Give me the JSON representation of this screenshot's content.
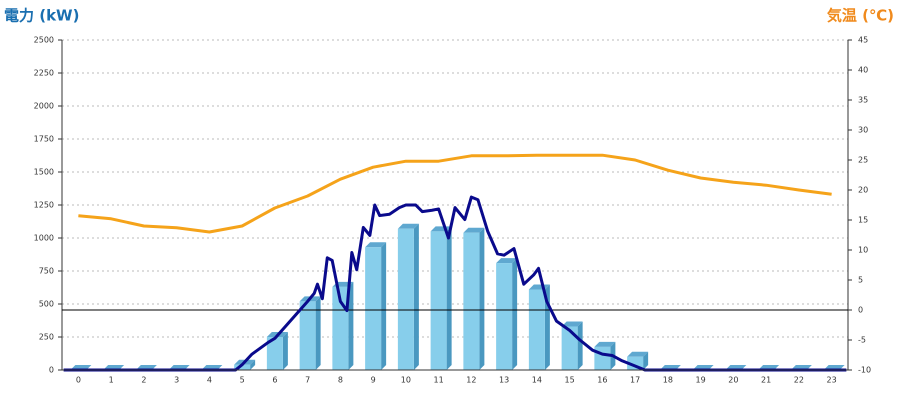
{
  "chart_data": {
    "type": "bar",
    "title": "電力 (kW)",
    "y2title": "気温 (℃)",
    "categories": [
      "0",
      "1",
      "2",
      "3",
      "4",
      "5",
      "6",
      "7",
      "8",
      "9",
      "10",
      "11",
      "12",
      "13",
      "14",
      "15",
      "16",
      "17",
      "18",
      "19",
      "20",
      "21",
      "22",
      "23"
    ],
    "ylim": [
      0,
      2500
    ],
    "yticks": [
      0,
      250,
      500,
      750,
      1000,
      1250,
      1500,
      1750,
      2000,
      2250,
      2500
    ],
    "y2lim": [
      -10,
      45
    ],
    "y2ticks": [
      -10,
      -5,
      0,
      5,
      10,
      15,
      20,
      25,
      30,
      35,
      40,
      45
    ],
    "grid": true,
    "series": [
      {
        "type": "bar",
        "color": "#87ceeb",
        "values": [
          0,
          0,
          0,
          0,
          0,
          40,
          250,
          520,
          630,
          930,
          1070,
          1050,
          1040,
          810,
          610,
          330,
          175,
          100,
          0,
          0,
          0,
          0,
          0,
          0
        ]
      },
      {
        "type": "line",
        "axis": "y2",
        "color": "#f5a31a",
        "values": [
          15.7,
          15.2,
          14,
          13.7,
          13,
          14,
          17,
          19,
          21.8,
          23.8,
          24.8,
          24.8,
          25.7,
          25.7,
          25.8,
          25.8,
          25.8,
          25,
          23.3,
          22,
          21.3,
          20.8,
          20,
          19.3
        ]
      },
      {
        "type": "line",
        "color": "#0a0a8c",
        "x": [
          -0.45,
          4.8,
          5,
          5.3,
          5.8,
          6,
          6.5,
          7,
          7.2,
          7.3,
          7.45,
          7.6,
          7.75,
          8,
          8.2,
          8.35,
          8.5,
          8.7,
          8.9,
          9.05,
          9.2,
          9.5,
          9.8,
          10,
          10.3,
          10.5,
          10.8,
          11,
          11.3,
          11.5,
          11.8,
          12,
          12.2,
          12.5,
          12.8,
          13,
          13.3,
          13.6,
          13.9,
          14.05,
          14.3,
          14.6,
          15,
          15.3,
          15.7,
          16,
          16.3,
          16.6,
          17,
          17.3,
          23.45
        ],
        "values": [
          0,
          0,
          40,
          120,
          210,
          240,
          380,
          520,
          580,
          650,
          540,
          850,
          830,
          520,
          450,
          890,
          760,
          1080,
          1020,
          1250,
          1170,
          1180,
          1230,
          1250,
          1250,
          1200,
          1210,
          1220,
          1000,
          1230,
          1140,
          1310,
          1290,
          1050,
          880,
          870,
          920,
          650,
          720,
          770,
          520,
          370,
          300,
          230,
          150,
          120,
          110,
          70,
          30,
          0,
          0
        ]
      }
    ]
  }
}
